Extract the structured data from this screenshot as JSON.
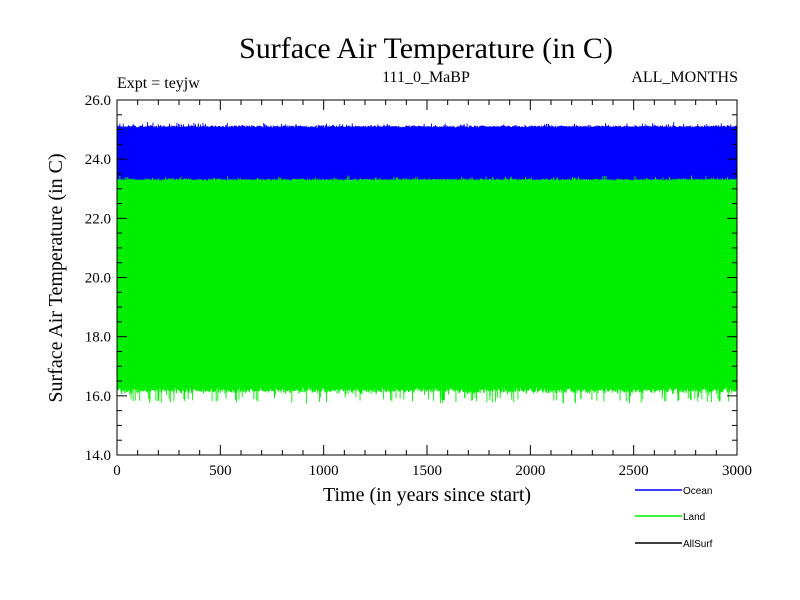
{
  "chart_data": {
    "type": "line",
    "title": "Surface Air Temperature (in C)",
    "expt_label": "Expt = teyjw",
    "subtitle": "111_0_MaBP",
    "months_label": "ALL_MONTHS",
    "xlabel": "Time (in years since start)",
    "ylabel": "Surface Air Temperature (in C)",
    "xlim": [
      0,
      3000
    ],
    "ylim": [
      14.0,
      26.0
    ],
    "x_ticks": [
      0,
      500,
      1000,
      1500,
      2000,
      2500,
      3000
    ],
    "y_ticks": [
      14.0,
      16.0,
      18.0,
      20.0,
      22.0,
      24.0,
      26.0
    ],
    "x_tick_labels": [
      "0",
      "500",
      "1000",
      "1500",
      "2000",
      "2500",
      "3000"
    ],
    "y_tick_labels": [
      "14.0",
      "16.0",
      "18.0",
      "20.0",
      "22.0",
      "24.0",
      "26.0"
    ],
    "series": [
      {
        "name": "Ocean",
        "color": "#0000ff",
        "n_years": 3000,
        "seasonal_range": [
          23.3,
          25.1
        ],
        "max_peak": 25.3,
        "min_trough": 23.1
      },
      {
        "name": "Land",
        "color": "#00ee00",
        "n_years": 3000,
        "seasonal_range": [
          16.2,
          23.3
        ],
        "max_peak": 23.45,
        "min_trough": 15.7
      },
      {
        "name": "AllSurf",
        "color": "#000000",
        "n_years": 3000,
        "seasonal_range": null
      }
    ]
  }
}
